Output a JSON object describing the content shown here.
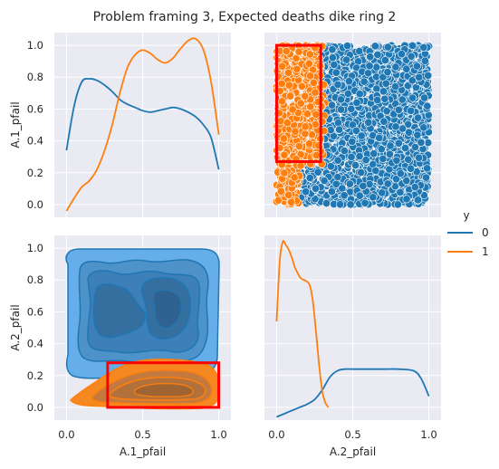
{
  "chart_data": {
    "type": "pairplot",
    "title": "Problem framing 3, Expected deaths dike ring 2",
    "variables": [
      "A.1_pfail",
      "A.2_pfail"
    ],
    "hue": {
      "title": "y",
      "entries": [
        {
          "label": "0",
          "color": "#1f77b4"
        },
        {
          "label": "1",
          "color": "#ff7f0e"
        }
      ]
    },
    "axis_range": [
      -0.08,
      1.08
    ],
    "ticks": [
      0.0,
      0.2,
      0.4,
      0.6,
      0.8,
      1.0
    ],
    "tick_labels_x": [
      "0.0",
      "0.5",
      "1.0"
    ],
    "tick_labels_y": [
      "0.0",
      "0.2",
      "0.4",
      "0.6",
      "0.8",
      "1.0"
    ],
    "grid": true,
    "legend_position": "right",
    "diag_kde": {
      "A.1_pfail": {
        "series": [
          {
            "name": "0",
            "x": [
              0.0,
              0.05,
              0.1,
              0.15,
              0.2,
              0.25,
              0.3,
              0.35,
              0.4,
              0.45,
              0.5,
              0.55,
              0.6,
              0.65,
              0.7,
              0.75,
              0.8,
              0.85,
              0.9,
              0.95,
              1.0
            ],
            "y": [
              0.34,
              0.62,
              0.77,
              0.79,
              0.78,
              0.75,
              0.71,
              0.66,
              0.63,
              0.61,
              0.59,
              0.58,
              0.59,
              0.6,
              0.61,
              0.6,
              0.58,
              0.55,
              0.5,
              0.42,
              0.22
            ]
          },
          {
            "name": "1",
            "x": [
              0.0,
              0.05,
              0.1,
              0.15,
              0.2,
              0.25,
              0.3,
              0.35,
              0.4,
              0.45,
              0.5,
              0.55,
              0.6,
              0.65,
              0.7,
              0.75,
              0.8,
              0.85,
              0.9,
              0.95,
              1.0
            ],
            "y": [
              -0.04,
              0.04,
              0.11,
              0.15,
              0.22,
              0.34,
              0.5,
              0.7,
              0.86,
              0.94,
              0.97,
              0.95,
              0.91,
              0.89,
              0.92,
              0.98,
              1.03,
              1.04,
              0.97,
              0.77,
              0.44
            ]
          }
        ]
      },
      "A.2_pfail": {
        "series": [
          {
            "name": "0",
            "x": [
              0.0,
              0.05,
              0.1,
              0.15,
              0.2,
              0.25,
              0.3,
              0.35,
              0.4,
              0.45,
              0.5,
              0.6,
              0.7,
              0.8,
              0.9,
              0.95,
              1.0
            ],
            "y": [
              -0.06,
              -0.04,
              -0.02,
              0.0,
              0.02,
              0.05,
              0.11,
              0.19,
              0.23,
              0.24,
              0.24,
              0.24,
              0.24,
              0.24,
              0.23,
              0.18,
              0.07
            ]
          },
          {
            "name": "1",
            "x": [
              0.0,
              0.02,
              0.04,
              0.06,
              0.08,
              0.1,
              0.12,
              0.14,
              0.16,
              0.18,
              0.2,
              0.22,
              0.24,
              0.26,
              0.28,
              0.3,
              0.32,
              0.34
            ],
            "y": [
              0.54,
              0.91,
              1.04,
              1.02,
              0.99,
              0.94,
              0.88,
              0.84,
              0.81,
              0.8,
              0.79,
              0.76,
              0.65,
              0.46,
              0.26,
              0.1,
              0.03,
              0.0
            ]
          }
        ]
      }
    },
    "scatter": {
      "x_var": "A.2_pfail",
      "y_var": "A.1_pfail",
      "classes": [
        {
          "name": "0",
          "region": "x > ~0.1 over full range of y; y < ~0.25 only when x > ~0.15"
        },
        {
          "name": "1",
          "region": "x < ~0.3 with y > ~0.25; also x < ~0.15 for all y"
        }
      ],
      "highlight_box": {
        "x": [
          0.0,
          0.29
        ],
        "y": [
          0.27,
          1.0
        ],
        "color": "#ff0000"
      }
    },
    "kde2d": {
      "x_var": "A.1_pfail",
      "y_var": "A.2_pfail",
      "classes": [
        {
          "name": "0",
          "x_range": [
            0.0,
            1.0
          ],
          "y_range": [
            0.15,
            1.0
          ]
        },
        {
          "name": "1",
          "x_range": [
            0.03,
            1.0
          ],
          "y_range": [
            0.0,
            0.3
          ]
        }
      ],
      "highlight_box": {
        "x": [
          0.27,
          1.0
        ],
        "y": [
          0.0,
          0.28
        ],
        "color": "#ff0000"
      }
    }
  }
}
